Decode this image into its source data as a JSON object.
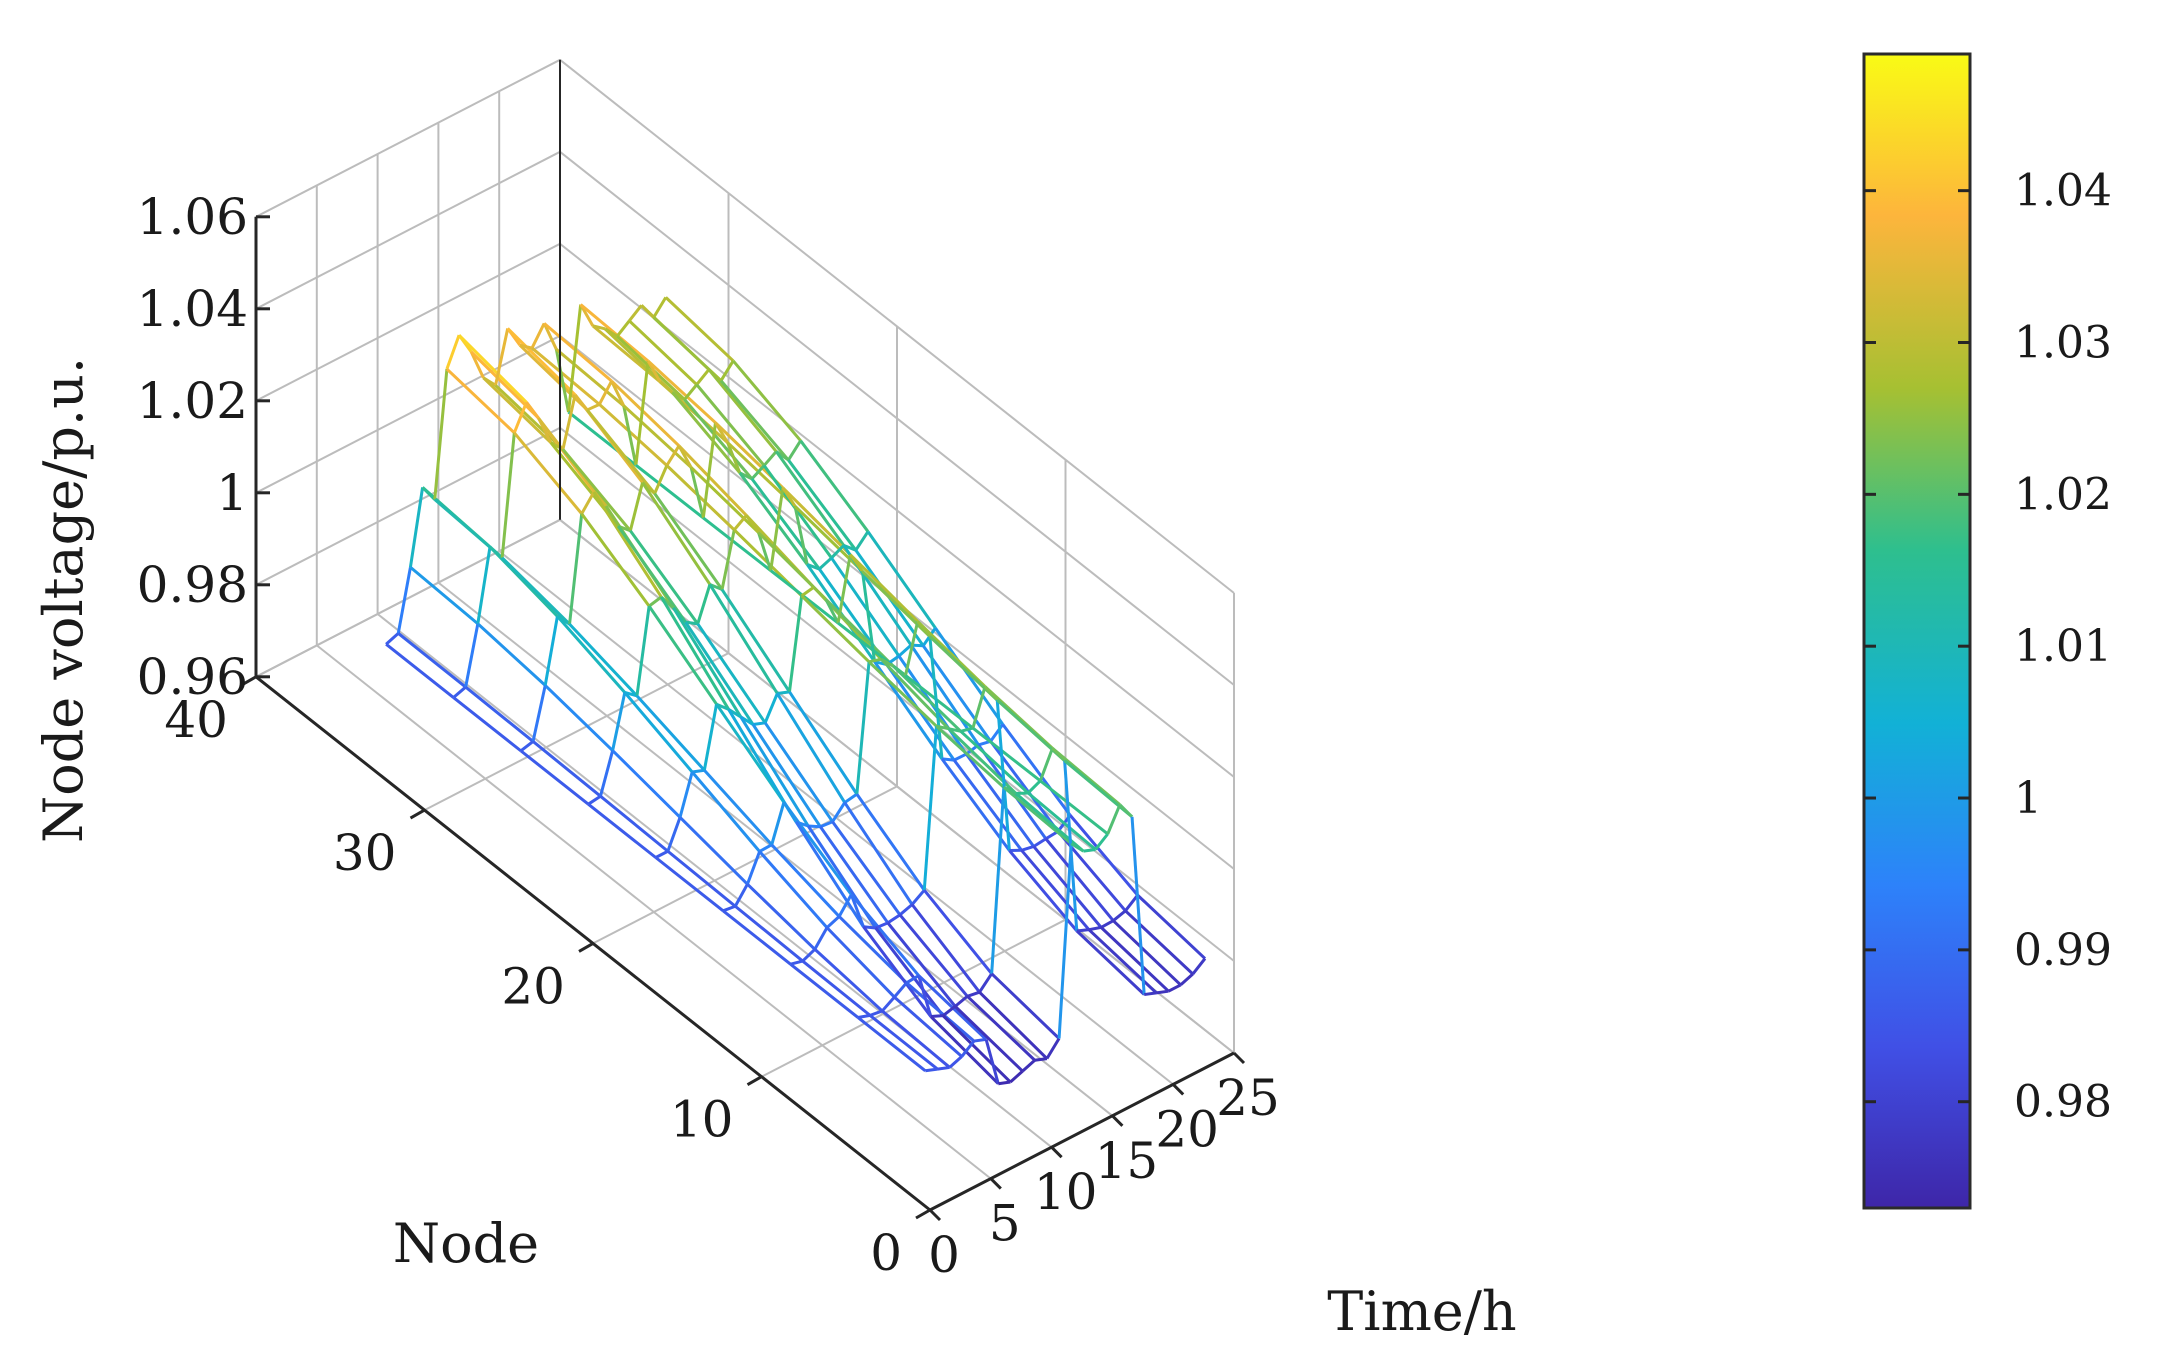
{
  "chart_data": {
    "type": "mesh3d",
    "title": "",
    "xlabel": "Time/h",
    "ylabel": "Node",
    "zlabel": "Node voltage/p.u.",
    "xlim": [
      0,
      25
    ],
    "ylim": [
      0,
      40
    ],
    "zlim": [
      0.96,
      1.06
    ],
    "xticks": [
      "0",
      "5",
      "10",
      "15",
      "20",
      "25"
    ],
    "yticks": [
      "0",
      "10",
      "20",
      "30",
      "40"
    ],
    "zticks": [
      "0.96",
      "0.98",
      "1",
      "1.02",
      "1.04",
      "1.06"
    ],
    "grid": true,
    "colormap": "parula",
    "colorbar": {
      "range": [
        0.973,
        1.049
      ],
      "ticks": [
        "0.98",
        "0.99",
        "1",
        "1.01",
        "1.02",
        "1.03",
        "1.04"
      ]
    },
    "time": [
      1,
      2,
      3,
      4,
      5,
      6,
      7,
      8,
      9,
      10,
      11,
      12,
      13,
      14,
      15,
      16,
      17,
      18,
      19,
      20,
      21,
      22,
      23,
      24
    ],
    "nodes": [
      1,
      33
    ],
    "profile_node1": [
      0.986,
      0.985,
      0.984,
      0.985,
      0.987,
      0.986,
      0.975,
      0.974,
      0.975,
      0.976,
      0.975,
      0.978,
      1.019,
      1.016,
      1.015,
      1.017,
      1.022,
      1.018,
      0.978,
      0.977,
      0.976,
      0.976,
      0.977,
      0.979
    ],
    "profile_node33": [
      0.986,
      0.987,
      1.0,
      1.016,
      1.012,
      1.039,
      1.045,
      1.04,
      1.033,
      1.03,
      1.041,
      1.036,
      1.034,
      1.038,
      1.031,
      1.016,
      1.038,
      1.032,
      1.03,
      1.027,
      1.029,
      1.031,
      1.027,
      1.03
    ]
  }
}
